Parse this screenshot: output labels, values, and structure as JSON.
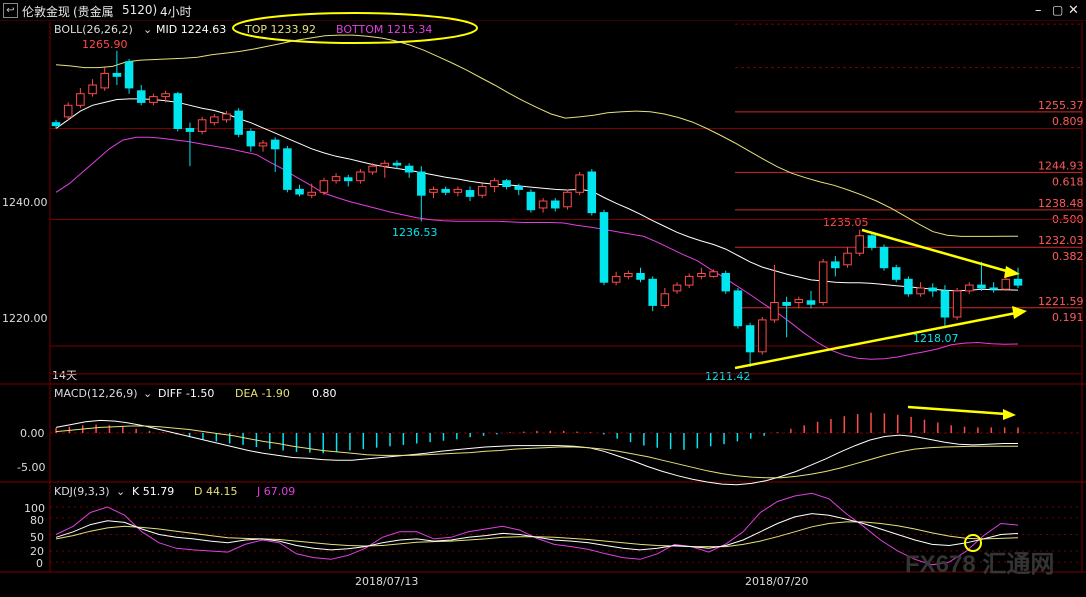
{
  "window": {
    "title": "伦敦金现",
    "instrument": "(贵金属",
    "code": "5120)",
    "period": "4小时"
  },
  "colors": {
    "up": "#ff4a4a",
    "down": "#00e5ee",
    "mid": "#ffffff",
    "top": "#e6e07a",
    "bottom": "#e040e0",
    "grid": "#7a0000",
    "fib": "#d42828",
    "arrow": "#ffff00",
    "macd_diff": "#ffffff",
    "macd_dea": "#e6e07a",
    "kdj_k": "#ffffff",
    "kdj_d": "#e6e07a",
    "kdj_j": "#e040e0"
  },
  "boll": {
    "name": "BOLL(26,26,2)",
    "mid_label": "MID 1224.63",
    "top_label": "TOP 1233.92",
    "bottom_label": "BOTTOM 1215.34"
  },
  "price_axis": {
    "ticks": [
      "1240.00",
      "1220.00"
    ],
    "tick_values": [
      1240,
      1220
    ]
  },
  "price_annotations": {
    "high": "1265.90",
    "low_mid": "1236.53",
    "peak": "1235.05",
    "low": "1211.42",
    "low2": "1218.07",
    "bars_label": "14天"
  },
  "fib_levels": [
    {
      "price": "1255.37",
      "ratio": "0.809"
    },
    {
      "price": "1244.93",
      "ratio": "0.618"
    },
    {
      "price": "1238.48",
      "ratio": "0.500"
    },
    {
      "price": "1232.03",
      "ratio": "0.382"
    },
    {
      "price": "1221.59",
      "ratio": "0.191"
    }
  ],
  "macd": {
    "name": "MACD(12,26,9)",
    "diff_label": "DIFF -1.50",
    "dea_label": "DEA -1.90",
    "macd_label": "0.80",
    "ticks": [
      "0.00",
      "-5.00"
    ]
  },
  "kdj": {
    "name": "KDJ(9,3,3)",
    "k_label": "K 51.79",
    "d_label": "D 44.15",
    "j_label": "J 67.09",
    "ticks": [
      "100",
      "80",
      "50",
      "20",
      "0"
    ]
  },
  "dates": [
    "2018/07/13",
    "2018/07/20"
  ],
  "watermark": "FX678 汇通网",
  "chart_data": {
    "type": "candlestick",
    "title": "伦敦金现 4小时",
    "price_ylim": [
      1205,
      1278
    ],
    "candles": [
      {
        "o": 1253.5,
        "h": 1254.0,
        "l": 1252.5,
        "c": 1253.0
      },
      {
        "o": 1254.5,
        "h": 1257.0,
        "l": 1254.0,
        "c": 1256.5
      },
      {
        "o": 1256.5,
        "h": 1259.5,
        "l": 1256.0,
        "c": 1258.5
      },
      {
        "o": 1258.5,
        "h": 1261.0,
        "l": 1258.0,
        "c": 1260.0
      },
      {
        "o": 1259.5,
        "h": 1263.0,
        "l": 1259.0,
        "c": 1262.0
      },
      {
        "o": 1262.0,
        "h": 1265.9,
        "l": 1260.0,
        "c": 1261.5
      },
      {
        "o": 1264.0,
        "h": 1264.5,
        "l": 1258.5,
        "c": 1259.5
      },
      {
        "o": 1259.0,
        "h": 1260.0,
        "l": 1256.5,
        "c": 1257.0
      },
      {
        "o": 1257.0,
        "h": 1258.5,
        "l": 1256.5,
        "c": 1258.0
      },
      {
        "o": 1258.0,
        "h": 1259.0,
        "l": 1257.0,
        "c": 1258.5
      },
      {
        "o": 1258.5,
        "h": 1258.8,
        "l": 1252.0,
        "c": 1252.5
      },
      {
        "o": 1252.5,
        "h": 1253.5,
        "l": 1246.0,
        "c": 1252.0
      },
      {
        "o": 1252.0,
        "h": 1254.5,
        "l": 1251.5,
        "c": 1254.0
      },
      {
        "o": 1253.5,
        "h": 1255.0,
        "l": 1253.0,
        "c": 1254.5
      },
      {
        "o": 1254.0,
        "h": 1255.5,
        "l": 1253.5,
        "c": 1255.0
      },
      {
        "o": 1255.5,
        "h": 1256.0,
        "l": 1251.0,
        "c": 1251.5
      },
      {
        "o": 1252.0,
        "h": 1252.5,
        "l": 1248.5,
        "c": 1249.5
      },
      {
        "o": 1249.5,
        "h": 1250.5,
        "l": 1248.5,
        "c": 1250.0
      },
      {
        "o": 1250.5,
        "h": 1251.0,
        "l": 1245.0,
        "c": 1249.0
      },
      {
        "o": 1249.0,
        "h": 1249.5,
        "l": 1241.5,
        "c": 1242.0
      },
      {
        "o": 1242.0,
        "h": 1242.8,
        "l": 1240.8,
        "c": 1241.2
      },
      {
        "o": 1241.0,
        "h": 1243.0,
        "l": 1240.5,
        "c": 1241.5
      },
      {
        "o": 1241.5,
        "h": 1244.0,
        "l": 1241.0,
        "c": 1243.5
      },
      {
        "o": 1243.5,
        "h": 1244.8,
        "l": 1243.0,
        "c": 1244.2
      },
      {
        "o": 1244.0,
        "h": 1244.5,
        "l": 1242.5,
        "c": 1243.5
      },
      {
        "o": 1243.5,
        "h": 1245.5,
        "l": 1243.0,
        "c": 1245.0
      },
      {
        "o": 1245.0,
        "h": 1246.5,
        "l": 1244.5,
        "c": 1246.0
      },
      {
        "o": 1246.0,
        "h": 1247.0,
        "l": 1244.0,
        "c": 1246.5
      },
      {
        "o": 1246.5,
        "h": 1247.0,
        "l": 1245.5,
        "c": 1246.2
      },
      {
        "o": 1246.0,
        "h": 1246.5,
        "l": 1244.0,
        "c": 1245.0
      },
      {
        "o": 1245.0,
        "h": 1246.0,
        "l": 1236.5,
        "c": 1241.0
      },
      {
        "o": 1241.5,
        "h": 1242.5,
        "l": 1240.5,
        "c": 1242.0
      },
      {
        "o": 1242.0,
        "h": 1242.5,
        "l": 1241.0,
        "c": 1241.5
      },
      {
        "o": 1241.5,
        "h": 1242.5,
        "l": 1240.8,
        "c": 1242.0
      },
      {
        "o": 1241.8,
        "h": 1242.5,
        "l": 1240.0,
        "c": 1240.8
      },
      {
        "o": 1241.0,
        "h": 1243.0,
        "l": 1240.5,
        "c": 1242.5
      },
      {
        "o": 1242.5,
        "h": 1244.0,
        "l": 1241.5,
        "c": 1243.5
      },
      {
        "o": 1243.5,
        "h": 1243.8,
        "l": 1242.0,
        "c": 1242.5
      },
      {
        "o": 1242.5,
        "h": 1243.0,
        "l": 1241.0,
        "c": 1242.0
      },
      {
        "o": 1241.5,
        "h": 1242.0,
        "l": 1238.0,
        "c": 1238.5
      },
      {
        "o": 1238.8,
        "h": 1240.5,
        "l": 1238.0,
        "c": 1240.0
      },
      {
        "o": 1240.0,
        "h": 1240.5,
        "l": 1238.2,
        "c": 1238.8
      },
      {
        "o": 1239.0,
        "h": 1242.0,
        "l": 1238.5,
        "c": 1241.5
      },
      {
        "o": 1241.5,
        "h": 1245.0,
        "l": 1241.0,
        "c": 1244.5
      },
      {
        "o": 1245.0,
        "h": 1245.5,
        "l": 1237.5,
        "c": 1238.0
      },
      {
        "o": 1238.0,
        "h": 1238.5,
        "l": 1225.5,
        "c": 1226.0
      },
      {
        "o": 1226.0,
        "h": 1227.8,
        "l": 1225.5,
        "c": 1227.0
      },
      {
        "o": 1227.0,
        "h": 1228.0,
        "l": 1226.5,
        "c": 1227.5
      },
      {
        "o": 1227.5,
        "h": 1228.5,
        "l": 1226.0,
        "c": 1226.5
      },
      {
        "o": 1226.5,
        "h": 1227.0,
        "l": 1221.0,
        "c": 1222.0
      },
      {
        "o": 1222.0,
        "h": 1225.0,
        "l": 1221.5,
        "c": 1224.0
      },
      {
        "o": 1224.5,
        "h": 1226.0,
        "l": 1224.0,
        "c": 1225.5
      },
      {
        "o": 1225.5,
        "h": 1227.5,
        "l": 1225.0,
        "c": 1227.0
      },
      {
        "o": 1227.0,
        "h": 1228.5,
        "l": 1226.5,
        "c": 1227.5
      },
      {
        "o": 1227.0,
        "h": 1228.2,
        "l": 1226.8,
        "c": 1227.8
      },
      {
        "o": 1227.5,
        "h": 1228.0,
        "l": 1224.0,
        "c": 1224.5
      },
      {
        "o": 1224.5,
        "h": 1225.0,
        "l": 1218.0,
        "c": 1218.5
      },
      {
        "o": 1218.5,
        "h": 1219.0,
        "l": 1211.4,
        "c": 1214.0
      },
      {
        "o": 1214.0,
        "h": 1220.0,
        "l": 1213.5,
        "c": 1219.5
      },
      {
        "o": 1219.5,
        "h": 1229.0,
        "l": 1219.0,
        "c": 1222.5
      },
      {
        "o": 1222.5,
        "h": 1223.5,
        "l": 1216.5,
        "c": 1222.0
      },
      {
        "o": 1222.5,
        "h": 1223.5,
        "l": 1221.5,
        "c": 1223.0
      },
      {
        "o": 1222.8,
        "h": 1224.5,
        "l": 1221.5,
        "c": 1222.2
      },
      {
        "o": 1222.5,
        "h": 1230.0,
        "l": 1222.0,
        "c": 1229.5
      },
      {
        "o": 1229.5,
        "h": 1230.5,
        "l": 1227.0,
        "c": 1228.5
      },
      {
        "o": 1229.0,
        "h": 1232.0,
        "l": 1228.5,
        "c": 1231.0
      },
      {
        "o": 1231.0,
        "h": 1235.05,
        "l": 1230.5,
        "c": 1234.0
      },
      {
        "o": 1234.0,
        "h": 1234.5,
        "l": 1231.5,
        "c": 1232.0
      },
      {
        "o": 1232.0,
        "h": 1232.5,
        "l": 1228.0,
        "c": 1228.5
      },
      {
        "o": 1228.5,
        "h": 1229.0,
        "l": 1226.0,
        "c": 1226.5
      },
      {
        "o": 1226.5,
        "h": 1227.0,
        "l": 1223.5,
        "c": 1224.0
      },
      {
        "o": 1224.0,
        "h": 1226.0,
        "l": 1223.5,
        "c": 1225.0
      },
      {
        "o": 1225.0,
        "h": 1225.8,
        "l": 1223.5,
        "c": 1224.5
      },
      {
        "o": 1224.5,
        "h": 1225.5,
        "l": 1218.07,
        "c": 1220.0
      },
      {
        "o": 1220.0,
        "h": 1225.0,
        "l": 1219.5,
        "c": 1224.5
      },
      {
        "o": 1224.5,
        "h": 1226.0,
        "l": 1224.0,
        "c": 1225.5
      },
      {
        "o": 1225.5,
        "h": 1229.5,
        "l": 1224.5,
        "c": 1225.0
      },
      {
        "o": 1225.0,
        "h": 1226.0,
        "l": 1224.2,
        "c": 1224.8
      },
      {
        "o": 1224.8,
        "h": 1227.5,
        "l": 1224.5,
        "c": 1226.5
      },
      {
        "o": 1226.5,
        "h": 1228.5,
        "l": 1225.0,
        "c": 1225.5
      }
    ],
    "boll_mid": [
      1252.5,
      1254.0,
      1255.5,
      1256.5,
      1257.0,
      1257.5,
      1257.6,
      1257.6,
      1257.5,
      1257.3,
      1257.0,
      1256.5,
      1256.0,
      1255.6,
      1255.0,
      1254.2,
      1253.5,
      1252.6,
      1251.7,
      1250.8,
      1249.9,
      1249.0,
      1248.3,
      1247.7,
      1247.3,
      1246.8,
      1246.3,
      1245.9,
      1245.6,
      1245.3,
      1244.9,
      1244.5,
      1244.1,
      1243.8,
      1243.4,
      1243.1,
      1242.9,
      1242.8,
      1242.6,
      1242.4,
      1242.2,
      1242.0,
      1241.9,
      1242.0,
      1241.7,
      1240.6,
      1239.6,
      1238.7,
      1237.7,
      1236.6,
      1235.6,
      1234.6,
      1233.8,
      1233.1,
      1232.5,
      1231.7,
      1230.6,
      1229.5,
      1228.6,
      1228.0,
      1227.4,
      1226.9,
      1226.4,
      1226.2,
      1226.0,
      1225.9,
      1225.9,
      1225.8,
      1225.6,
      1225.4,
      1225.2,
      1225.0,
      1224.8,
      1224.6,
      1224.5,
      1224.6,
      1224.8,
      1224.7,
      1224.7,
      1224.63
    ],
    "boll_top": [
      1263.5,
      1263.3,
      1263.0,
      1263.0,
      1263.2,
      1264.0,
      1264.3,
      1264.4,
      1264.5,
      1264.6,
      1264.8,
      1265.2,
      1265.5,
      1265.8,
      1266.2,
      1266.7,
      1267.2,
      1267.7,
      1268.1,
      1268.5,
      1268.6,
      1268.6,
      1268.4,
      1268.1,
      1267.6,
      1266.9,
      1266.0,
      1264.9,
      1263.8,
      1262.6,
      1261.3,
      1260.0,
      1258.6,
      1257.3,
      1256.1,
      1255.0,
      1254.3,
      1254.5,
      1254.8,
      1255.2,
      1255.4,
      1255.5,
      1255.4,
      1255.0,
      1254.4,
      1253.6,
      1252.5,
      1251.3,
      1250.0,
      1248.6,
      1247.2,
      1245.9,
      1244.8,
      1244.0,
      1243.3,
      1242.7,
      1241.9,
      1241.0,
      1240.0,
      1238.8,
      1237.4,
      1236.0,
      1234.7,
      1234.1,
      1233.9,
      1233.9,
      1233.9,
      1233.92,
      1233.92
    ],
    "boll_bottom": [
      1241.5,
      1243.0,
      1245.0,
      1247.0,
      1249.0,
      1250.5,
      1251.0,
      1251.0,
      1250.8,
      1250.5,
      1250.2,
      1249.8,
      1249.4,
      1249.0,
      1248.5,
      1248.0,
      1246.7,
      1245.5,
      1244.1,
      1242.8,
      1241.4,
      1240.6,
      1239.9,
      1239.3,
      1238.7,
      1238.1,
      1237.6,
      1237.1,
      1236.8,
      1236.6,
      1236.5,
      1236.5,
      1236.5,
      1236.5,
      1236.4,
      1236.3,
      1236.3,
      1236.3,
      1236.2,
      1235.8,
      1235.5,
      1235.1,
      1234.7,
      1234.3,
      1233.9,
      1232.9,
      1231.8,
      1230.7,
      1229.7,
      1228.2,
      1226.8,
      1225.3,
      1223.8,
      1222.2,
      1220.7,
      1219.0,
      1217.2,
      1215.6,
      1214.3,
      1213.4,
      1212.9,
      1212.7,
      1212.8,
      1213.1,
      1213.6,
      1214.0,
      1214.5,
      1215.2,
      1215.5,
      1215.6,
      1215.4,
      1215.3,
      1215.34
    ],
    "macd_hist": [
      0.7,
      0.9,
      1.1,
      1.2,
      1.1,
      0.9,
      0.6,
      0.3,
      0.1,
      -0.2,
      -0.6,
      -0.9,
      -1.2,
      -1.5,
      -1.7,
      -2.0,
      -2.3,
      -2.5,
      -2.7,
      -2.8,
      -2.9,
      -2.7,
      -2.5,
      -2.3,
      -2.1,
      -1.9,
      -1.7,
      -1.5,
      -1.3,
      -1.1,
      -0.9,
      -0.6,
      -0.4,
      -0.2,
      0.1,
      0.2,
      0.3,
      0.3,
      0.3,
      0.2,
      0.1,
      -0.2,
      -0.8,
      -1.3,
      -1.8,
      -2.1,
      -2.3,
      -2.4,
      -2.2,
      -1.9,
      -1.6,
      -1.2,
      -0.8,
      -0.4,
      0.1,
      0.6,
      1.1,
      1.6,
      2.0,
      2.4,
      2.7,
      2.9,
      2.8,
      2.6,
      2.3,
      1.9,
      1.5,
      1.1,
      0.9,
      0.8,
      0.8,
      0.8,
      0.8
    ],
    "macd_diff": [
      0.8,
      1.2,
      1.6,
      1.8,
      1.7,
      1.4,
      1.0,
      0.5,
      0.0,
      -0.5,
      -1.0,
      -1.5,
      -2.0,
      -2.5,
      -2.9,
      -3.2,
      -3.5,
      -3.6,
      -3.8,
      -3.9,
      -3.9,
      -3.7,
      -3.5,
      -3.3,
      -3.1,
      -2.9,
      -2.6,
      -2.4,
      -2.2,
      -2.0,
      -1.9,
      -1.8,
      -1.8,
      -1.8,
      -1.8,
      -1.9,
      -2.1,
      -2.6,
      -3.3,
      -4.0,
      -4.8,
      -5.5,
      -6.1,
      -6.6,
      -7.0,
      -7.3,
      -7.4,
      -7.2,
      -6.8,
      -6.2,
      -5.5,
      -4.6,
      -3.7,
      -2.7,
      -1.8,
      -1.0,
      -0.5,
      -0.3,
      -0.5,
      -0.9,
      -1.3,
      -1.6,
      -1.7,
      -1.6,
      -1.5,
      -1.5
    ],
    "macd_dea": [
      0.2,
      0.4,
      0.6,
      0.8,
      0.9,
      1.0,
      1.0,
      0.9,
      0.7,
      0.5,
      0.2,
      -0.1,
      -0.4,
      -0.8,
      -1.2,
      -1.5,
      -1.9,
      -2.2,
      -2.5,
      -2.7,
      -2.9,
      -3.1,
      -3.2,
      -3.2,
      -3.2,
      -3.1,
      -3.0,
      -2.9,
      -2.8,
      -2.6,
      -2.5,
      -2.3,
      -2.2,
      -2.1,
      -2.0,
      -2.0,
      -2.1,
      -2.3,
      -2.6,
      -3.0,
      -3.4,
      -3.9,
      -4.4,
      -4.9,
      -5.4,
      -5.8,
      -6.1,
      -6.3,
      -6.4,
      -6.4,
      -6.2,
      -5.9,
      -5.5,
      -5.0,
      -4.4,
      -3.8,
      -3.2,
      -2.7,
      -2.3,
      -2.1,
      -2.0,
      -1.95,
      -1.9,
      -1.9,
      -1.9,
      -1.9
    ],
    "kdj_k": [
      45,
      55,
      68,
      75,
      72,
      60,
      50,
      45,
      42,
      38,
      35,
      40,
      42,
      38,
      30,
      25,
      22,
      24,
      28,
      35,
      40,
      42,
      38,
      40,
      45,
      48,
      52,
      50,
      45,
      40,
      38,
      35,
      30,
      25,
      22,
      25,
      30,
      28,
      25,
      30,
      40,
      55,
      70,
      82,
      88,
      85,
      78,
      70,
      60,
      50,
      40,
      32,
      30,
      35,
      42,
      50,
      51.79
    ],
    "kdj_d": [
      42,
      48,
      56,
      62,
      65,
      63,
      60,
      56,
      52,
      48,
      44,
      43,
      42,
      41,
      38,
      35,
      32,
      30,
      29,
      30,
      33,
      36,
      37,
      38,
      40,
      42,
      45,
      46,
      46,
      45,
      43,
      41,
      38,
      35,
      32,
      30,
      29,
      28,
      28,
      28,
      32,
      38,
      46,
      55,
      64,
      70,
      73,
      73,
      70,
      66,
      60,
      53,
      47,
      43,
      42,
      43,
      44.15
    ],
    "kdj_j": [
      50,
      65,
      90,
      100,
      85,
      55,
      35,
      25,
      22,
      20,
      18,
      32,
      40,
      35,
      15,
      8,
      5,
      12,
      25,
      45,
      55,
      55,
      42,
      45,
      55,
      60,
      65,
      58,
      43,
      32,
      28,
      23,
      15,
      8,
      5,
      15,
      32,
      28,
      18,
      33,
      55,
      90,
      110,
      120,
      125,
      115,
      88,
      65,
      40,
      20,
      5,
      -5,
      0,
      20,
      48,
      70,
      67.09
    ],
    "price_label": "1265.90",
    "ylabel": "",
    "xlabel": ""
  }
}
